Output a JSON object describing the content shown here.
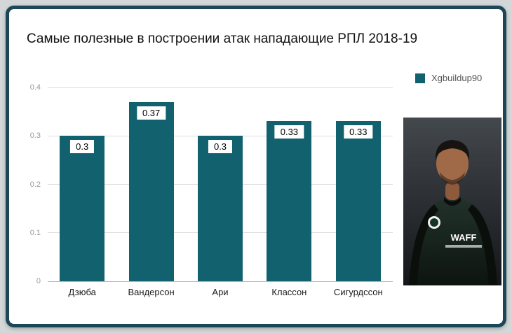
{
  "title": "Самые полезные в построении атак нападающие РПЛ 2018-19",
  "legend_label": "Xgbuildup90",
  "colors": {
    "bar": "#12616f",
    "frame_border": "#1c4757",
    "gridline": "#dcdcdc",
    "tick_text": "#9a9a9a"
  },
  "chart_data": {
    "type": "bar",
    "title": "Самые полезные в построении атак нападающие РПЛ 2018-19",
    "categories": [
      "Дзюба",
      "Вандерсон",
      "Ари",
      "Классон",
      "Сигурдссон"
    ],
    "values": [
      0.3,
      0.37,
      0.3,
      0.33,
      0.33
    ],
    "value_labels": [
      "0.3",
      "0.37",
      "0.3",
      "0.33",
      "0.33"
    ],
    "xlabel": "",
    "ylabel": "",
    "ylim": [
      0,
      0.4
    ],
    "yticks": [
      0,
      0.1,
      0.2,
      0.3,
      0.4
    ],
    "ytick_labels": [
      "0",
      "0.1",
      "0.2",
      "0.3",
      "0.4"
    ],
    "legend": [
      "Xgbuildup90"
    ],
    "legend_position": "top-right",
    "grid": true,
    "bar_color": "#12616f"
  }
}
